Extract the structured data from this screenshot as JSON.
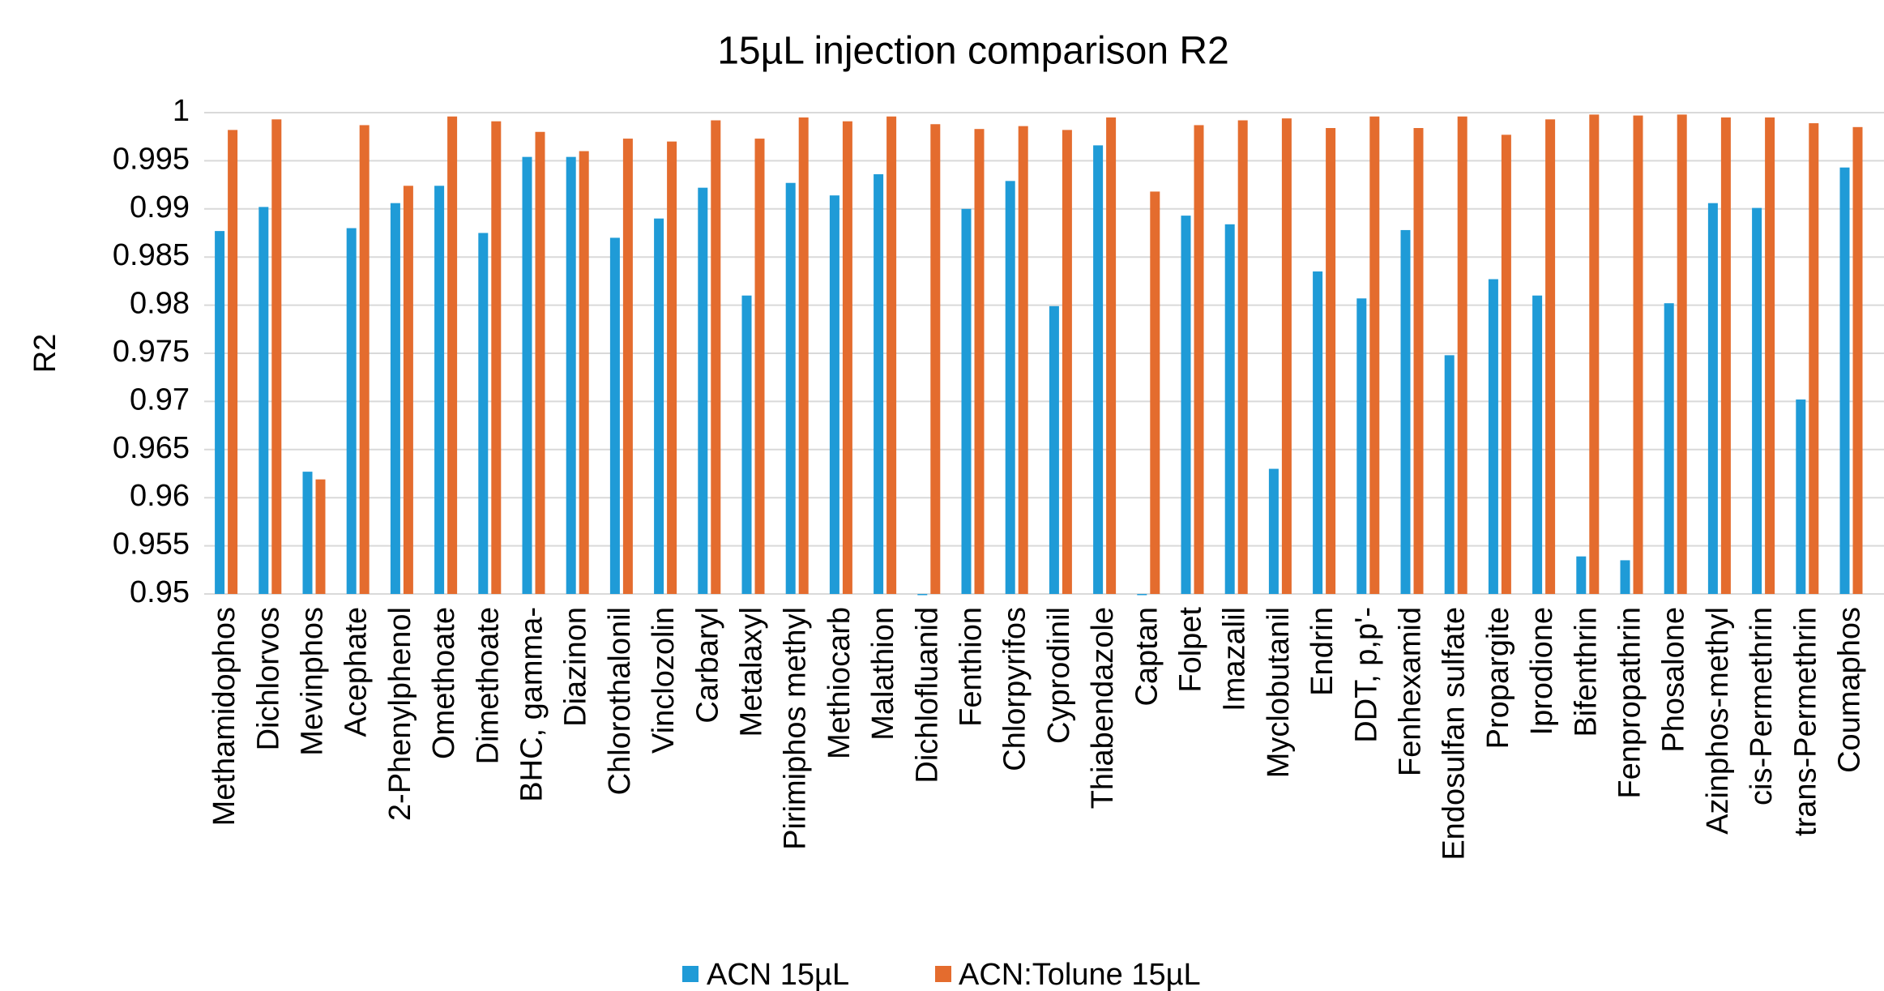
{
  "chart_data": {
    "type": "bar",
    "title": "15µL injection comparison R2",
    "y_label": "R2",
    "categories": [
      "Methamidophos",
      "Dichlorvos",
      "Mevinphos",
      "Acephate",
      "2-Phenylphenol",
      "Omethoate",
      "Dimethoate",
      "BHC, gamma-",
      "Diazinon",
      "Chlorothalonil",
      "Vinclozolin",
      "Carbaryl",
      "Metalaxyl",
      "Pirimiphos methyl",
      "Methiocarb",
      "Malathion",
      "Dichlofluanid",
      "Fenthion",
      "Chlorpyrifos",
      "Cyprodinil",
      "Thiabendazole",
      "Captan",
      "Folpet",
      "Imazalil",
      "Myclobutanil",
      "Endrin",
      "DDT, p,p'-",
      "Fenhexamid",
      "Endosulfan sulfate",
      "Propargite",
      "Iprodione",
      "Bifenthrin",
      "Fenpropathrin",
      "Phosalone",
      "Azinphos-methyl",
      "cis-Permethrin",
      "trans-Permethrin",
      "Coumaphos"
    ],
    "series": [
      {
        "name": "ACN 15µL",
        "color": "#1f9bd7",
        "values": [
          0.9877,
          0.9902,
          0.9627,
          0.988,
          0.9906,
          0.9924,
          0.9875,
          0.9954,
          0.9954,
          0.987,
          0.989,
          0.9922,
          0.981,
          0.9927,
          0.9914,
          0.9936,
          0.9499,
          0.99,
          0.9929,
          0.9799,
          0.9966,
          0.9499,
          0.9893,
          0.9884,
          0.963,
          0.9835,
          0.9807,
          0.9878,
          0.9748,
          0.9827,
          0.981,
          0.9539,
          0.9535,
          0.9802,
          0.9906,
          0.9901,
          0.9702,
          0.9943
        ]
      },
      {
        "name": "ACN:Tolune 15µL",
        "color": "#e46c2e",
        "values": [
          0.9982,
          0.9993,
          0.9619,
          0.9987,
          0.9924,
          0.9996,
          0.9991,
          0.998,
          0.996,
          0.9973,
          0.997,
          0.9992,
          0.9973,
          0.9995,
          0.9991,
          0.9996,
          0.9988,
          0.9983,
          0.9986,
          0.9982,
          0.9995,
          0.9918,
          0.9987,
          0.9992,
          0.9994,
          0.9984,
          0.9996,
          0.9984,
          0.9996,
          0.9977,
          0.9993,
          0.9998,
          0.9997,
          0.9998,
          0.9995,
          0.9995,
          0.9989,
          0.9985
        ]
      }
    ],
    "ylim": [
      0.95,
      1
    ],
    "yticks": [
      0.95,
      0.955,
      0.96,
      0.965,
      0.97,
      0.975,
      0.98,
      0.985,
      0.99,
      0.995,
      1
    ],
    "grid": true,
    "legend": "bottom"
  }
}
